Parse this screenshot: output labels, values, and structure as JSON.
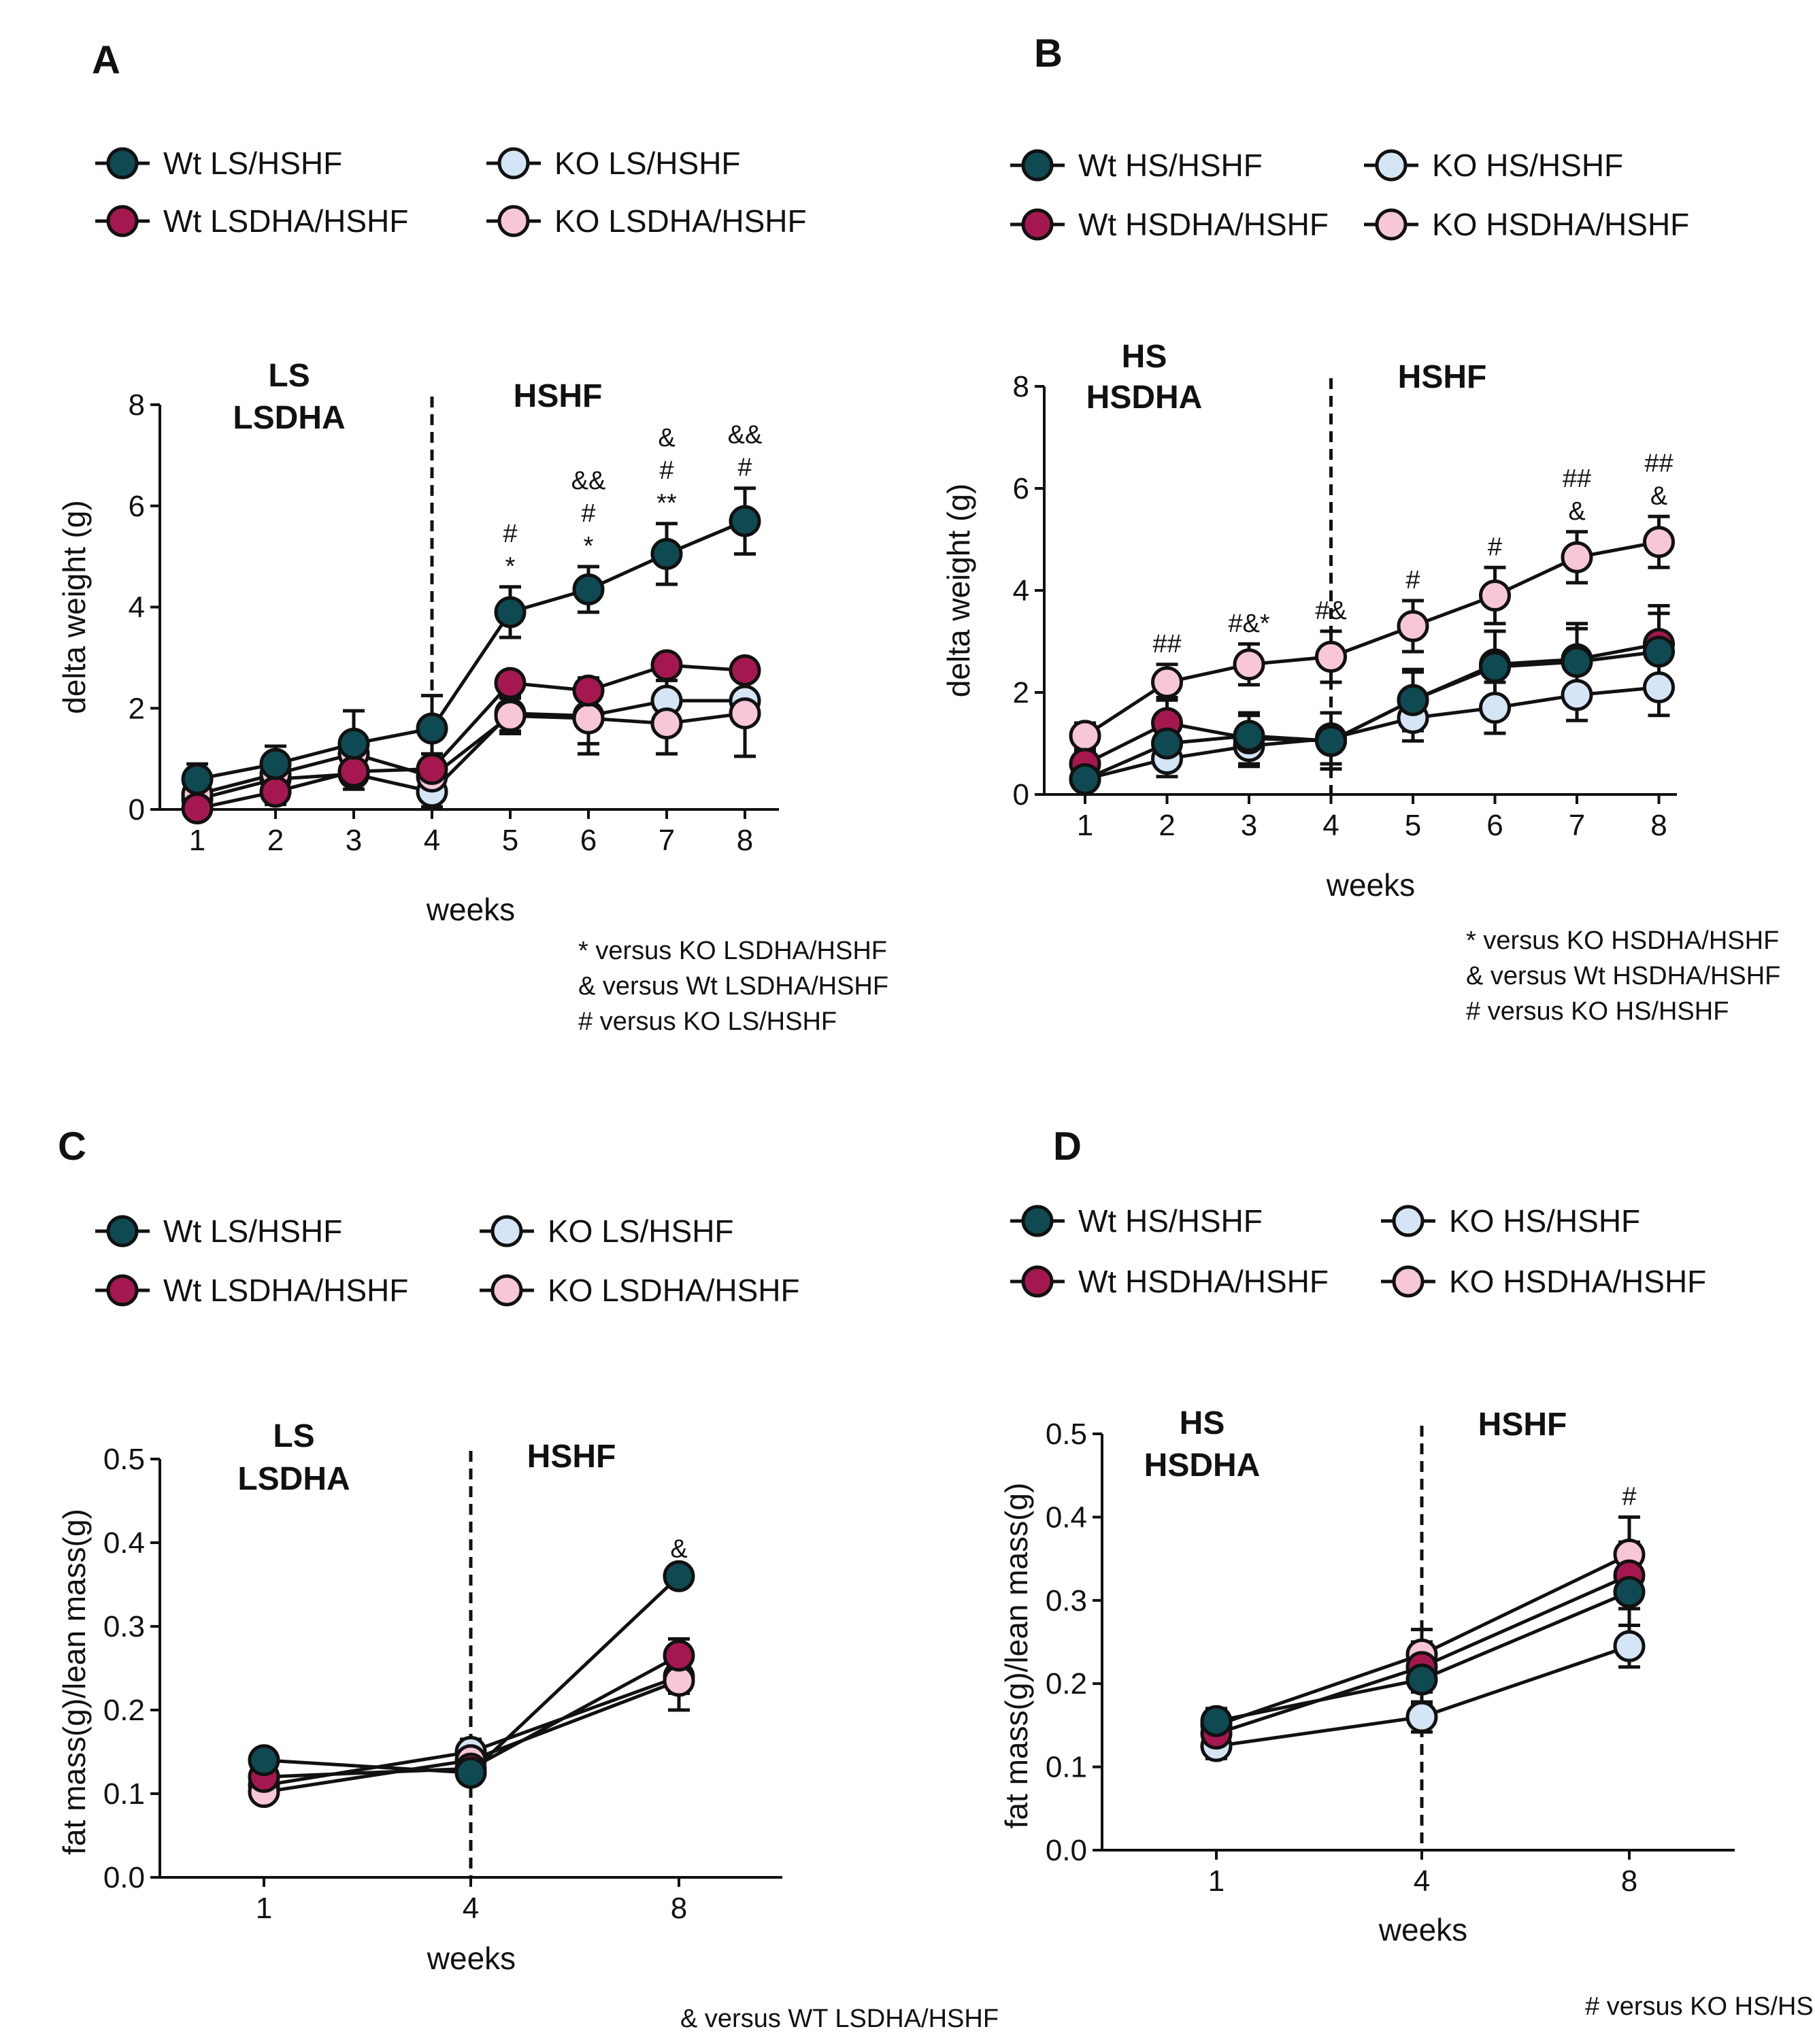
{
  "colors": {
    "wt_ctrl": "#0f4a52",
    "wt_dha": "#a5184f",
    "ko_ctrl": "#d4e5f5",
    "ko_dha": "#f7c6d8",
    "ink": "#111111"
  },
  "chart_data": [
    {
      "panel": "A",
      "type": "line",
      "xlabel": "weeks",
      "ylabel": "delta weight (g)",
      "x": [
        1,
        2,
        3,
        4,
        5,
        6,
        7,
        8
      ],
      "x_tick_labels": [
        "1",
        "2",
        "3",
        "4",
        "5",
        "6",
        "7",
        "8"
      ],
      "ylim": [
        0,
        8
      ],
      "y_ticks": [
        0,
        2,
        4,
        6,
        8
      ],
      "y_tick_labels": [
        "0",
        "2",
        "4",
        "6",
        "8"
      ],
      "divider_at": 4,
      "phase_labels": [
        [
          "LS",
          "LSDHA"
        ],
        [
          "HSHF"
        ]
      ],
      "legend": [
        {
          "key": "wt_ctrl",
          "label": "Wt LS/HSHF"
        },
        {
          "key": "ko_ctrl",
          "label": "KO  LS/HSHF"
        },
        {
          "key": "wt_dha",
          "label": "Wt LSDHA/HSHF"
        },
        {
          "key": "ko_dha",
          "label": "KO  LSDHA/HSHF"
        }
      ],
      "series": [
        {
          "key": "ko_ctrl",
          "name": "KO LS/HSHF",
          "values": [
            0.2,
            0.6,
            0.7,
            0.35,
            1.9,
            1.85,
            2.15,
            2.15
          ],
          "err": [
            0.2,
            0.3,
            0.3,
            0.3,
            0.35,
            0.75,
            0.4,
            0.45
          ]
        },
        {
          "key": "ko_dha",
          "name": "KO LSDHA/HSHF",
          "values": [
            0.3,
            0.7,
            1.1,
            0.65,
            1.85,
            1.8,
            1.7,
            1.9
          ],
          "err": [
            0.25,
            0.3,
            0.35,
            0.35,
            0.35,
            0.5,
            0.6,
            0.85
          ]
        },
        {
          "key": "wt_dha",
          "name": "Wt LSDHA/HSHF",
          "values": [
            0.02,
            0.35,
            0.75,
            0.8,
            2.5,
            2.35,
            2.85,
            2.75
          ],
          "err": [
            0.15,
            0.25,
            0.25,
            0.3,
            0.2,
            0.2,
            0.2,
            0.15
          ]
        },
        {
          "key": "wt_ctrl",
          "name": "Wt LS/HSHF",
          "values": [
            0.6,
            0.9,
            1.3,
            1.6,
            3.9,
            4.35,
            5.05,
            5.7
          ],
          "err": [
            0.3,
            0.35,
            0.65,
            0.65,
            0.5,
            0.45,
            0.6,
            0.65
          ]
        }
      ],
      "annotations": [
        {
          "x": 5,
          "lines": [
            "#",
            "*"
          ]
        },
        {
          "x": 6,
          "lines": [
            "&&",
            "#",
            "*"
          ]
        },
        {
          "x": 7,
          "lines": [
            "&",
            "#",
            "**"
          ]
        },
        {
          "x": 8,
          "lines": [
            "&&",
            "#"
          ]
        }
      ],
      "notes": [
        "*  versus KO LSDHA/HSHF",
        "& versus Wt LSDHA/HSHF",
        "# versus KO LS/HSHF"
      ]
    },
    {
      "panel": "B",
      "type": "line",
      "xlabel": "weeks",
      "ylabel": "delta weight (g)",
      "x": [
        1,
        2,
        3,
        4,
        5,
        6,
        7,
        8
      ],
      "x_tick_labels": [
        "1",
        "2",
        "3",
        "4",
        "5",
        "6",
        "7",
        "8"
      ],
      "ylim": [
        0,
        8
      ],
      "y_ticks": [
        0,
        2,
        4,
        6,
        8
      ],
      "y_tick_labels": [
        "0",
        "2",
        "4",
        "6",
        "8"
      ],
      "divider_at": 4,
      "phase_labels": [
        [
          "HS",
          "HSDHA"
        ],
        [
          "HSHF"
        ]
      ],
      "legend": [
        {
          "key": "wt_ctrl",
          "label": "Wt HS/HSHF"
        },
        {
          "key": "ko_ctrl",
          "label": "KO  HS/HSHF"
        },
        {
          "key": "wt_dha",
          "label": "Wt HSDHA/HSHF"
        },
        {
          "key": "ko_dha",
          "label": "KO  HSDHA/HSHF"
        }
      ],
      "series": [
        {
          "key": "ko_ctrl",
          "name": "KO HS/HSHF",
          "values": [
            0.3,
            0.7,
            0.95,
            1.1,
            1.5,
            1.7,
            1.95,
            2.1
          ],
          "err": [
            0.2,
            0.35,
            0.4,
            0.5,
            0.45,
            0.5,
            0.5,
            0.55
          ]
        },
        {
          "key": "wt_dha",
          "name": "Wt HSDHA/HSHF",
          "values": [
            0.6,
            1.4,
            1.1,
            1.05,
            1.85,
            2.55,
            2.65,
            2.95
          ],
          "err": [
            0.25,
            0.5,
            0.5,
            0.55,
            0.6,
            0.65,
            0.7,
            0.75
          ]
        },
        {
          "key": "wt_ctrl",
          "name": "Wt HS/HSHF",
          "values": [
            0.3,
            1.0,
            1.15,
            1.05,
            1.85,
            2.5,
            2.6,
            2.8
          ],
          "err": [
            0.2,
            0.4,
            0.4,
            0.55,
            0.55,
            0.7,
            0.65,
            0.75
          ]
        },
        {
          "key": "ko_dha",
          "name": "KO HSDHA/HSHF",
          "values": [
            1.15,
            2.2,
            2.55,
            2.7,
            3.3,
            3.9,
            4.65,
            4.95
          ],
          "err": [
            0.25,
            0.35,
            0.4,
            0.5,
            0.5,
            0.55,
            0.5,
            0.5
          ]
        }
      ],
      "annotations": [
        {
          "x": 2,
          "lines": [
            "##"
          ]
        },
        {
          "x": 3,
          "lines": [
            "#&*"
          ]
        },
        {
          "x": 4,
          "lines": [
            "#&"
          ]
        },
        {
          "x": 5,
          "lines": [
            "#"
          ]
        },
        {
          "x": 6,
          "lines": [
            "#"
          ]
        },
        {
          "x": 7,
          "lines": [
            "##",
            "&"
          ]
        },
        {
          "x": 8,
          "lines": [
            "##",
            "&"
          ]
        }
      ],
      "notes": [
        "*  versus KO HSDHA/HSHF",
        "& versus Wt HSDHA/HSHF",
        "# versus KO HS/HSHF"
      ]
    },
    {
      "panel": "C",
      "type": "line",
      "xlabel": "weeks",
      "ylabel": "fat mass(g)/lean mass(g)",
      "x": [
        1,
        4,
        8
      ],
      "x_tick_labels": [
        "1",
        "4",
        "8"
      ],
      "ylim": [
        0,
        0.5
      ],
      "y_ticks": [
        0,
        0.1,
        0.2,
        0.3,
        0.4,
        0.5
      ],
      "y_tick_labels": [
        "0.0",
        "0.1",
        "0.2",
        "0.3",
        "0.4",
        "0.5"
      ],
      "divider_at": 4,
      "phase_labels": [
        [
          "LS",
          "LSDHA"
        ],
        [
          "HSHF"
        ]
      ],
      "legend": [
        {
          "key": "wt_ctrl",
          "label": "Wt LS/HSHF"
        },
        {
          "key": "ko_ctrl",
          "label": "KO  LS/HSHF"
        },
        {
          "key": "wt_dha",
          "label": "Wt LSDHA/HSHF"
        },
        {
          "key": "ko_dha",
          "label": "KO  LSDHA/HSHF"
        }
      ],
      "series": [
        {
          "key": "ko_ctrl",
          "name": "KO LS/HSHF",
          "values": [
            0.11,
            0.15,
            0.24
          ],
          "err": [
            0.01,
            0.015,
            0.02
          ]
        },
        {
          "key": "wt_dha",
          "name": "Wt LSDHA/HSHF",
          "values": [
            0.12,
            0.13,
            0.265
          ],
          "err": [
            0.01,
            0.01,
            0.02
          ]
        },
        {
          "key": "wt_ctrl",
          "name": "Wt LS/HSHF",
          "values": [
            0.14,
            0.125,
            0.36
          ],
          "err": [
            0.01,
            0.01,
            0.008
          ]
        },
        {
          "key": "ko_dha",
          "name": "KO LSDHA/HSHF",
          "values": [
            0.102,
            0.14,
            0.235
          ],
          "err": [
            0.008,
            0.01,
            0.035
          ]
        }
      ],
      "annotations": [
        {
          "x": 8,
          "lines": [
            "&"
          ]
        }
      ],
      "notes": [
        "& versus WT LSDHA/HSHF"
      ]
    },
    {
      "panel": "D",
      "type": "line",
      "xlabel": "weeks",
      "ylabel": "fat mass(g)/lean mass(g)",
      "x": [
        1,
        4,
        8
      ],
      "x_tick_labels": [
        "1",
        "4",
        "8"
      ],
      "ylim": [
        0,
        0.5
      ],
      "y_ticks": [
        0,
        0.1,
        0.2,
        0.3,
        0.4,
        0.5
      ],
      "y_tick_labels": [
        "0.0",
        "0.1",
        "0.2",
        "0.3",
        "0.4",
        "0.5"
      ],
      "divider_at": 4,
      "phase_labels": [
        [
          "HS",
          "HSDHA"
        ],
        [
          "HSHF"
        ]
      ],
      "legend": [
        {
          "key": "wt_ctrl",
          "label": "Wt HS/HSHF"
        },
        {
          "key": "ko_ctrl",
          "label": "KO  HS/HSHF"
        },
        {
          "key": "wt_dha",
          "label": "Wt HSDHA/HSHF"
        },
        {
          "key": "ko_dha",
          "label": "KO  HSDHA/HSHF"
        }
      ],
      "series": [
        {
          "key": "ko_ctrl",
          "name": "KO HS/HSHF",
          "values": [
            0.125,
            0.16,
            0.245
          ],
          "err": [
            0.015,
            0.018,
            0.025
          ]
        },
        {
          "key": "wt_dha",
          "name": "Wt HSDHA/HSHF",
          "values": [
            0.14,
            0.22,
            0.33
          ],
          "err": [
            0.015,
            0.03,
            0.04
          ]
        },
        {
          "key": "wt_ctrl",
          "name": "Wt HS/HSHF",
          "values": [
            0.155,
            0.205,
            0.31
          ],
          "err": [
            0.015,
            0.03,
            0.04
          ]
        },
        {
          "key": "ko_dha",
          "name": "KO HSDHA/HSHF",
          "values": [
            0.15,
            0.235,
            0.355
          ],
          "err": [
            0.02,
            0.03,
            0.045
          ]
        }
      ],
      "annotations": [
        {
          "x": 8,
          "lines": [
            "#"
          ]
        }
      ],
      "notes": [
        "# versus KO HS/HSHF"
      ]
    }
  ]
}
